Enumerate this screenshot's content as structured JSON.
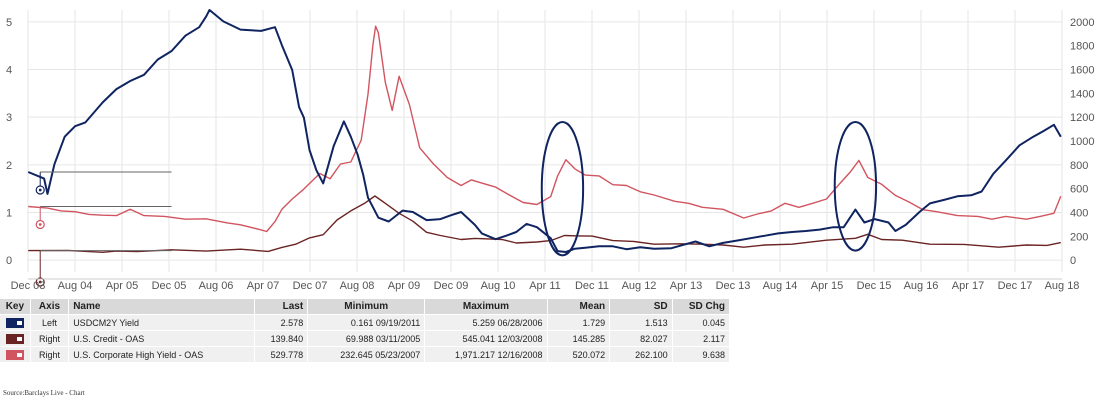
{
  "chart_data": {
    "type": "line",
    "x_tick_labels": [
      "Dec 03",
      "Aug 04",
      "Apr 05",
      "Dec 05",
      "Aug 06",
      "Apr 07",
      "Dec 07",
      "Aug 08",
      "Apr 09",
      "Dec 09",
      "Aug 10",
      "Apr 11",
      "Dec 11",
      "Aug 12",
      "Apr 13",
      "Dec 13",
      "Aug 14",
      "Apr 15",
      "Dec 15",
      "Aug 16",
      "Apr 17",
      "Dec 17",
      "Aug 18"
    ],
    "x_range": [
      2003.917,
      2018.917
    ],
    "y_left": {
      "ticks": [
        0,
        1,
        2,
        3,
        4,
        5
      ],
      "range": [
        -0.25,
        5.25
      ]
    },
    "y_right": {
      "ticks": [
        0,
        200,
        400,
        600,
        800,
        1000,
        1200,
        1400,
        1600,
        1800,
        2000
      ],
      "range": [
        -100,
        2100
      ]
    },
    "series": [
      {
        "name": "USDCM2Y Yield",
        "axis": "Left",
        "color": "#0f2460",
        "points": [
          [
            2003.92,
            1.85
          ],
          [
            2004.15,
            1.7
          ],
          [
            2004.2,
            1.4
          ],
          [
            2004.3,
            2.0
          ],
          [
            2004.45,
            2.6
          ],
          [
            2004.6,
            2.8
          ],
          [
            2004.75,
            2.9
          ],
          [
            2005.0,
            3.3
          ],
          [
            2005.2,
            3.6
          ],
          [
            2005.4,
            3.75
          ],
          [
            2005.6,
            3.9
          ],
          [
            2005.8,
            4.2
          ],
          [
            2006.0,
            4.4
          ],
          [
            2006.2,
            4.7
          ],
          [
            2006.4,
            4.9
          ],
          [
            2006.5,
            5.1
          ],
          [
            2006.55,
            5.26
          ],
          [
            2006.75,
            5.0
          ],
          [
            2007.0,
            4.85
          ],
          [
            2007.3,
            4.8
          ],
          [
            2007.5,
            4.9
          ],
          [
            2007.6,
            4.5
          ],
          [
            2007.75,
            4.0
          ],
          [
            2007.85,
            3.2
          ],
          [
            2007.92,
            3.0
          ],
          [
            2008.0,
            2.3
          ],
          [
            2008.1,
            1.9
          ],
          [
            2008.2,
            1.6
          ],
          [
            2008.35,
            2.4
          ],
          [
            2008.5,
            2.9
          ],
          [
            2008.6,
            2.6
          ],
          [
            2008.7,
            2.2
          ],
          [
            2008.78,
            1.8
          ],
          [
            2008.85,
            1.3
          ],
          [
            2009.0,
            0.9
          ],
          [
            2009.15,
            0.8
          ],
          [
            2009.35,
            1.05
          ],
          [
            2009.5,
            1.0
          ],
          [
            2009.7,
            0.85
          ],
          [
            2009.9,
            0.85
          ],
          [
            2010.05,
            0.95
          ],
          [
            2010.2,
            1.0
          ],
          [
            2010.4,
            0.75
          ],
          [
            2010.5,
            0.55
          ],
          [
            2010.7,
            0.45
          ],
          [
            2010.85,
            0.5
          ],
          [
            2011.0,
            0.6
          ],
          [
            2011.15,
            0.75
          ],
          [
            2011.3,
            0.7
          ],
          [
            2011.5,
            0.45
          ],
          [
            2011.6,
            0.2
          ],
          [
            2011.72,
            0.16
          ],
          [
            2011.85,
            0.25
          ],
          [
            2012.0,
            0.25
          ],
          [
            2012.2,
            0.3
          ],
          [
            2012.4,
            0.28
          ],
          [
            2012.6,
            0.24
          ],
          [
            2012.8,
            0.26
          ],
          [
            2013.0,
            0.25
          ],
          [
            2013.25,
            0.24
          ],
          [
            2013.4,
            0.32
          ],
          [
            2013.6,
            0.38
          ],
          [
            2013.8,
            0.3
          ],
          [
            2014.0,
            0.35
          ],
          [
            2014.2,
            0.42
          ],
          [
            2014.4,
            0.45
          ],
          [
            2014.6,
            0.52
          ],
          [
            2014.8,
            0.55
          ],
          [
            2015.0,
            0.6
          ],
          [
            2015.2,
            0.6
          ],
          [
            2015.4,
            0.65
          ],
          [
            2015.6,
            0.68
          ],
          [
            2015.75,
            0.7
          ],
          [
            2015.92,
            1.05
          ],
          [
            2016.05,
            0.8
          ],
          [
            2016.2,
            0.85
          ],
          [
            2016.4,
            0.8
          ],
          [
            2016.5,
            0.6
          ],
          [
            2016.65,
            0.75
          ],
          [
            2016.85,
            1.0
          ],
          [
            2017.0,
            1.2
          ],
          [
            2017.2,
            1.25
          ],
          [
            2017.4,
            1.35
          ],
          [
            2017.6,
            1.35
          ],
          [
            2017.75,
            1.45
          ],
          [
            2017.92,
            1.8
          ],
          [
            2018.1,
            2.1
          ],
          [
            2018.3,
            2.4
          ],
          [
            2018.5,
            2.6
          ],
          [
            2018.65,
            2.7
          ],
          [
            2018.8,
            2.85
          ],
          [
            2018.9,
            2.58
          ]
        ]
      },
      {
        "name": "U.S. Credit - OAS",
        "axis": "Right",
        "color": "#6b2424",
        "points": [
          [
            2003.92,
            80
          ],
          [
            2004.5,
            75
          ],
          [
            2005.0,
            72
          ],
          [
            2005.2,
            70
          ],
          [
            2005.5,
            78
          ],
          [
            2006.0,
            80
          ],
          [
            2006.5,
            82
          ],
          [
            2007.0,
            85
          ],
          [
            2007.4,
            80
          ],
          [
            2007.6,
            100
          ],
          [
            2007.8,
            140
          ],
          [
            2008.0,
            180
          ],
          [
            2008.2,
            220
          ],
          [
            2008.4,
            330
          ],
          [
            2008.6,
            420
          ],
          [
            2008.8,
            470
          ],
          [
            2008.95,
            545
          ],
          [
            2009.1,
            470
          ],
          [
            2009.3,
            400
          ],
          [
            2009.5,
            320
          ],
          [
            2009.7,
            240
          ],
          [
            2009.9,
            200
          ],
          [
            2010.2,
            180
          ],
          [
            2010.4,
            175
          ],
          [
            2010.6,
            185
          ],
          [
            2010.8,
            165
          ],
          [
            2011.0,
            150
          ],
          [
            2011.3,
            145
          ],
          [
            2011.5,
            170
          ],
          [
            2011.7,
            200
          ],
          [
            2011.9,
            210
          ],
          [
            2012.1,
            195
          ],
          [
            2012.4,
            170
          ],
          [
            2012.7,
            150
          ],
          [
            2013.0,
            140
          ],
          [
            2013.4,
            130
          ],
          [
            2013.7,
            140
          ],
          [
            2014.0,
            120
          ],
          [
            2014.3,
            115
          ],
          [
            2014.6,
            120
          ],
          [
            2015.0,
            140
          ],
          [
            2015.5,
            160
          ],
          [
            2015.92,
            190
          ],
          [
            2016.1,
            210
          ],
          [
            2016.3,
            180
          ],
          [
            2016.6,
            160
          ],
          [
            2017.0,
            140
          ],
          [
            2017.5,
            125
          ],
          [
            2018.0,
            115
          ],
          [
            2018.4,
            120
          ],
          [
            2018.7,
            130
          ],
          [
            2018.9,
            140
          ]
        ]
      },
      {
        "name": "U.S. Corporate High Yield - OAS",
        "axis": "Right",
        "color": "#d05560",
        "points": [
          [
            2003.92,
            450
          ],
          [
            2004.2,
            430
          ],
          [
            2004.4,
            420
          ],
          [
            2004.6,
            400
          ],
          [
            2004.8,
            390
          ],
          [
            2005.0,
            370
          ],
          [
            2005.2,
            380
          ],
          [
            2005.4,
            420
          ],
          [
            2005.6,
            380
          ],
          [
            2005.9,
            360
          ],
          [
            2006.2,
            350
          ],
          [
            2006.5,
            340
          ],
          [
            2006.8,
            320
          ],
          [
            2007.0,
            290
          ],
          [
            2007.3,
            260
          ],
          [
            2007.38,
            233
          ],
          [
            2007.5,
            330
          ],
          [
            2007.6,
            420
          ],
          [
            2007.75,
            520
          ],
          [
            2007.9,
            580
          ],
          [
            2008.0,
            650
          ],
          [
            2008.15,
            720
          ],
          [
            2008.3,
            690
          ],
          [
            2008.45,
            800
          ],
          [
            2008.6,
            830
          ],
          [
            2008.75,
            1000
          ],
          [
            2008.85,
            1400
          ],
          [
            2008.92,
            1800
          ],
          [
            2008.96,
            1971
          ],
          [
            2009.0,
            1900
          ],
          [
            2009.1,
            1500
          ],
          [
            2009.2,
            1250
          ],
          [
            2009.3,
            1550
          ],
          [
            2009.45,
            1300
          ],
          [
            2009.6,
            950
          ],
          [
            2009.8,
            800
          ],
          [
            2010.0,
            700
          ],
          [
            2010.2,
            620
          ],
          [
            2010.35,
            680
          ],
          [
            2010.5,
            640
          ],
          [
            2010.7,
            620
          ],
          [
            2010.9,
            540
          ],
          [
            2011.1,
            490
          ],
          [
            2011.3,
            460
          ],
          [
            2011.5,
            540
          ],
          [
            2011.6,
            700
          ],
          [
            2011.72,
            850
          ],
          [
            2011.85,
            760
          ],
          [
            2012.0,
            720
          ],
          [
            2012.2,
            700
          ],
          [
            2012.4,
            640
          ],
          [
            2012.6,
            620
          ],
          [
            2012.8,
            580
          ],
          [
            2013.0,
            540
          ],
          [
            2013.3,
            500
          ],
          [
            2013.5,
            470
          ],
          [
            2013.7,
            450
          ],
          [
            2014.0,
            420
          ],
          [
            2014.3,
            360
          ],
          [
            2014.5,
            380
          ],
          [
            2014.7,
            420
          ],
          [
            2014.9,
            470
          ],
          [
            2015.1,
            450
          ],
          [
            2015.3,
            470
          ],
          [
            2015.5,
            520
          ],
          [
            2015.7,
            640
          ],
          [
            2015.85,
            750
          ],
          [
            2015.97,
            830
          ],
          [
            2016.1,
            700
          ],
          [
            2016.3,
            630
          ],
          [
            2016.5,
            550
          ],
          [
            2016.7,
            480
          ],
          [
            2016.9,
            430
          ],
          [
            2017.1,
            400
          ],
          [
            2017.4,
            380
          ],
          [
            2017.7,
            360
          ],
          [
            2017.9,
            350
          ],
          [
            2018.1,
            360
          ],
          [
            2018.4,
            350
          ],
          [
            2018.6,
            360
          ],
          [
            2018.8,
            400
          ],
          [
            2018.9,
            530
          ]
        ]
      }
    ],
    "annotations": [
      {
        "type": "ellipse",
        "center_x": 2011.67,
        "center_y_left": 1.5,
        "rx": 0.3,
        "ry_left": 1.4
      },
      {
        "type": "ellipse",
        "center_x": 2015.92,
        "center_y_left": 1.55,
        "rx": 0.3,
        "ry_left": 1.35
      }
    ],
    "level_markers": [
      {
        "series": "USDCM2Y Yield",
        "y_left": 1.85,
        "x_end": 2006.0,
        "color": "#0f2460"
      },
      {
        "series": "U.S. Corporate High Yield - OAS",
        "y_right": 450,
        "x_end": 2006.0,
        "color": "#d05560"
      },
      {
        "series": "U.S. Credit - OAS",
        "y_right": 80,
        "x_end": 2006.0,
        "color": "#6b2424"
      }
    ]
  },
  "legend": {
    "headers": [
      "Key",
      "Axis",
      "Name",
      "Last",
      "Minimum",
      "Maximum",
      "Mean",
      "SD",
      "SD Chg"
    ],
    "rows": [
      {
        "color": "#0f2460",
        "axis": "Left",
        "name": "USDCM2Y Yield",
        "last": "2.578",
        "minimum": "0.161 09/19/2011",
        "maximum": "5.259 06/28/2006",
        "mean": "1.729",
        "sd": "1.513",
        "sd_chg": "0.045"
      },
      {
        "color": "#6b2424",
        "axis": "Right",
        "name": "U.S. Credit - OAS",
        "last": "139.840",
        "minimum": "69.988 03/11/2005",
        "maximum": "545.041 12/03/2008",
        "mean": "145.285",
        "sd": "82.027",
        "sd_chg": "2.117"
      },
      {
        "color": "#d05560",
        "axis": "Right",
        "name": "U.S. Corporate High Yield - OAS",
        "last": "529.778",
        "minimum": "232.645 05/23/2007",
        "maximum": "1,971.217 12/16/2008",
        "mean": "520.072",
        "sd": "262.100",
        "sd_chg": "9.638"
      }
    ]
  },
  "source": "Source:Barclays Live - Chart"
}
